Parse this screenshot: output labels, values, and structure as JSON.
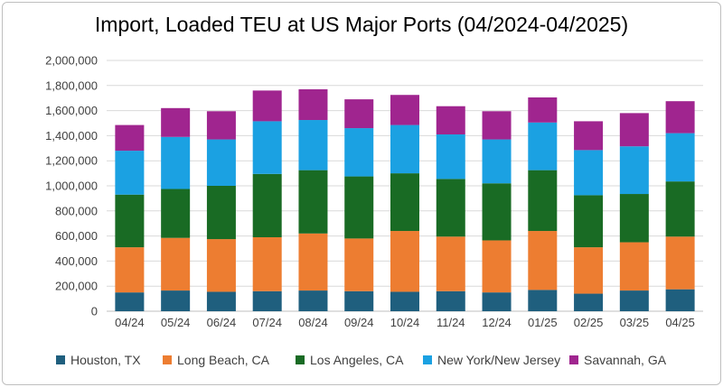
{
  "chart_data": {
    "type": "bar",
    "stacked": true,
    "title": "Import, Loaded TEU at US Major Ports (04/2024-04/2025)",
    "xlabel": "",
    "ylabel": "",
    "ylim": [
      0,
      2000000
    ],
    "yticks": [
      "0",
      "200,000",
      "400,000",
      "600,000",
      "800,000",
      "1,000,000",
      "1,200,000",
      "1,400,000",
      "1,600,000",
      "1,800,000",
      "2,000,000"
    ],
    "ytick_values": [
      0,
      200000,
      400000,
      600000,
      800000,
      1000000,
      1200000,
      1400000,
      1600000,
      1800000,
      2000000
    ],
    "grid": true,
    "legend_position": "bottom",
    "categories": [
      "04/24",
      "05/24",
      "06/24",
      "07/24",
      "08/24",
      "09/24",
      "10/24",
      "11/24",
      "12/24",
      "01/25",
      "02/25",
      "03/25",
      "04/25"
    ],
    "series": [
      {
        "name": "Houston, TX",
        "color": "#1f5f7e",
        "values": [
          150000,
          165000,
          155000,
          160000,
          165000,
          160000,
          155000,
          160000,
          150000,
          170000,
          140000,
          165000,
          175000
        ]
      },
      {
        "name": "Long Beach, CA",
        "color": "#ed7d31",
        "values": [
          360000,
          420000,
          420000,
          430000,
          455000,
          420000,
          485000,
          435000,
          415000,
          470000,
          370000,
          385000,
          420000
        ]
      },
      {
        "name": "Los Angeles, CA",
        "color": "#196b24",
        "values": [
          420000,
          390000,
          425000,
          505000,
          505000,
          495000,
          460000,
          460000,
          455000,
          485000,
          415000,
          385000,
          440000
        ]
      },
      {
        "name": "New York/New Jersey",
        "color": "#1ba1e2",
        "values": [
          350000,
          415000,
          370000,
          420000,
          400000,
          385000,
          385000,
          355000,
          350000,
          380000,
          360000,
          380000,
          385000
        ]
      },
      {
        "name": "Savannah, GA",
        "color": "#a0258f",
        "values": [
          205000,
          230000,
          225000,
          245000,
          245000,
          230000,
          240000,
          225000,
          225000,
          200000,
          230000,
          265000,
          255000
        ]
      }
    ]
  }
}
